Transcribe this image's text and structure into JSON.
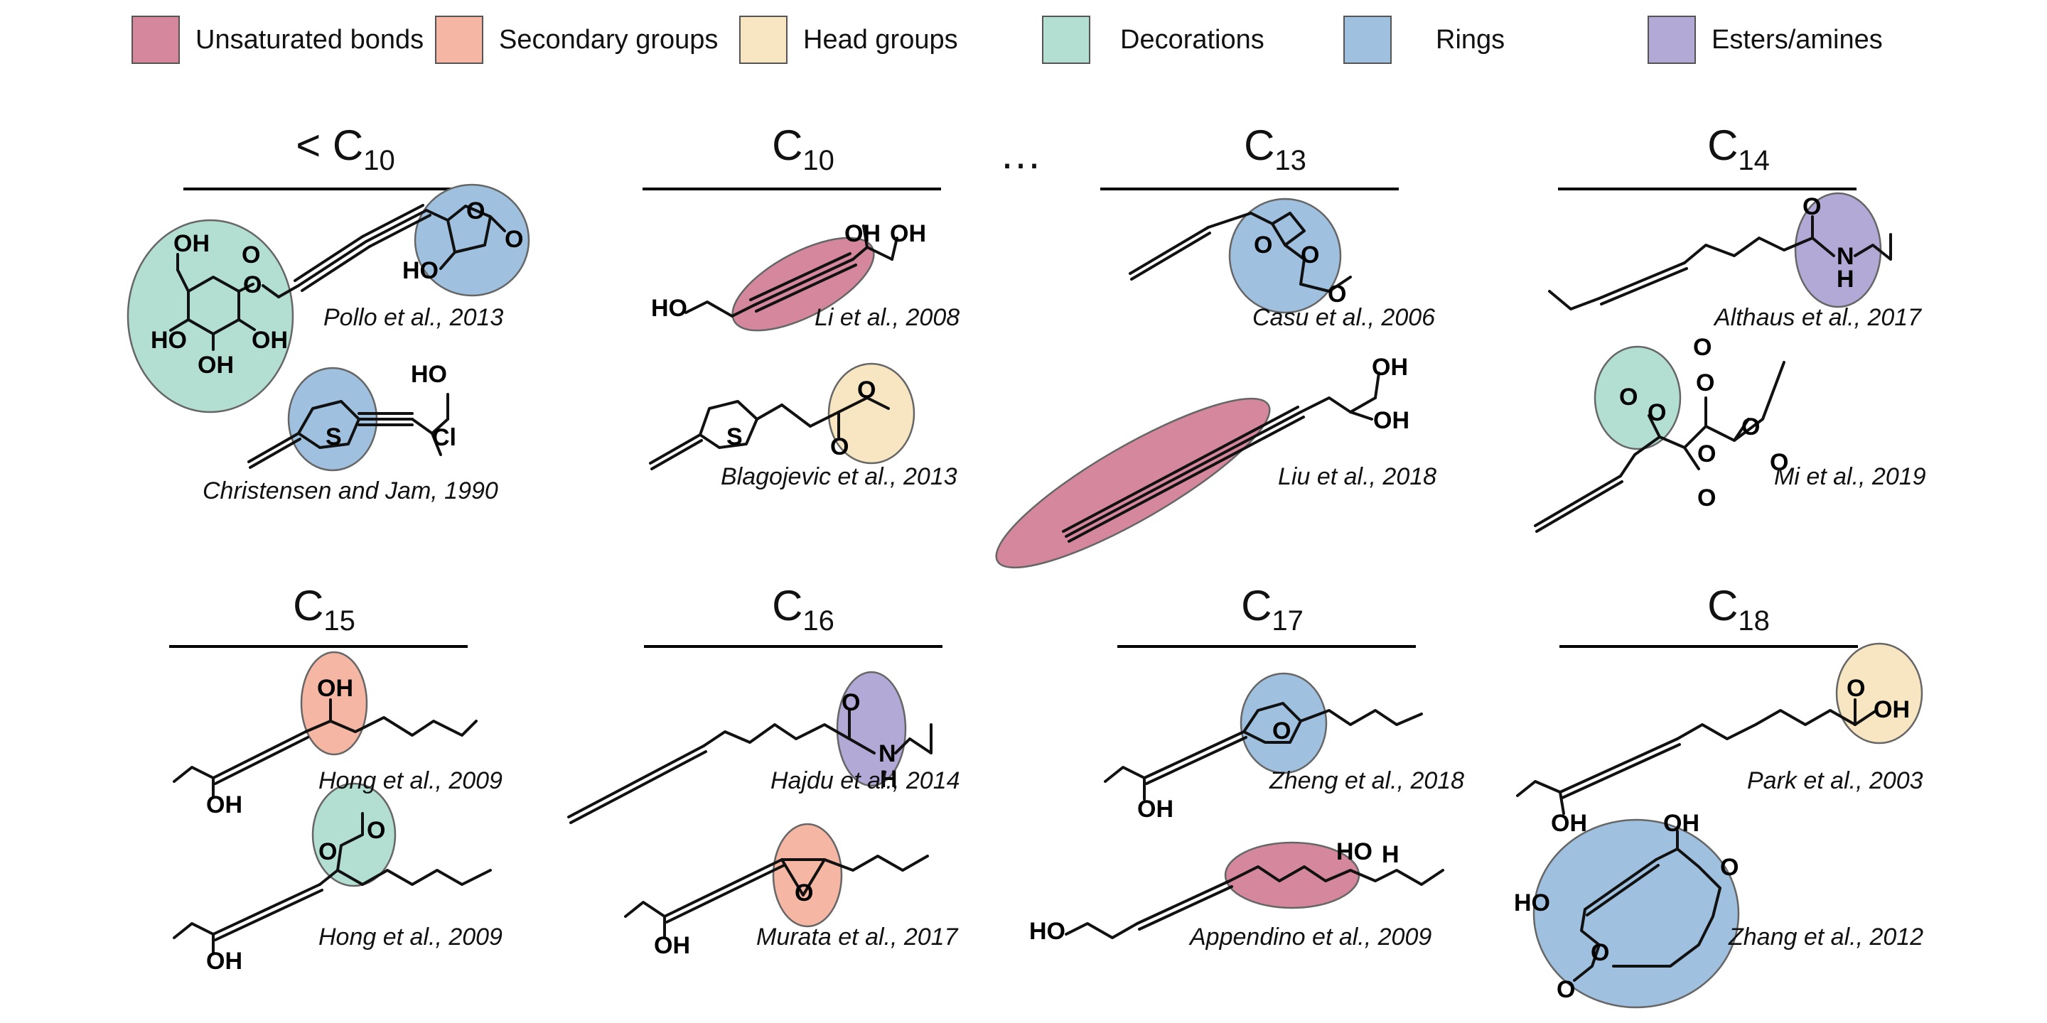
{
  "legend": [
    {
      "label": "Unsaturated bonds",
      "color": "#d4879d"
    },
    {
      "label": "Secondary groups",
      "color": "#f6b6a4"
    },
    {
      "label": "Head groups",
      "color": "#f7e6c1"
    },
    {
      "label": "Decorations",
      "color": "#b3dfd2"
    },
    {
      "label": "Rings",
      "color": "#9fc0de"
    },
    {
      "label": "Esters/amines",
      "color": "#b2a9d6"
    }
  ],
  "columns": {
    "row1": [
      {
        "prefix": "< C",
        "sub": "10"
      },
      {
        "prefix": "C",
        "sub": "10"
      },
      {
        "prefix": "C",
        "sub": "13"
      },
      {
        "prefix": "C",
        "sub": "14"
      }
    ],
    "row2": [
      {
        "prefix": "C",
        "sub": "15"
      },
      {
        "prefix": "C",
        "sub": "16"
      },
      {
        "prefix": "C",
        "sub": "17"
      },
      {
        "prefix": "C",
        "sub": "18"
      }
    ],
    "ellipsis": "…"
  },
  "citations": {
    "pollo": "Pollo et al., 2013",
    "christensen": "Christensen and Jam, 1990",
    "li": "Li et al., 2008",
    "blagojevic": "Blagojevic et al., 2013",
    "casu": "Casu et al., 2006",
    "liu": "Liu et al., 2018",
    "althaus": "Althaus et al., 2017",
    "mi": "Mi et al., 2019",
    "hong1": "Hong et al., 2009",
    "hong2": "Hong et al., 2009",
    "hajdu": "Hajdu et al., 2014",
    "murata": "Murata et al., 2017",
    "zheng": "Zheng et al., 2018",
    "appendino": "Appendino et al., 2009",
    "park": "Park et al., 2003",
    "zhang": "Zhang et al., 2012"
  },
  "atoms": {
    "oh": "OH",
    "ho": "HO",
    "o": "O",
    "s": "S",
    "n": "N",
    "h": "H",
    "cl": "Cl"
  }
}
